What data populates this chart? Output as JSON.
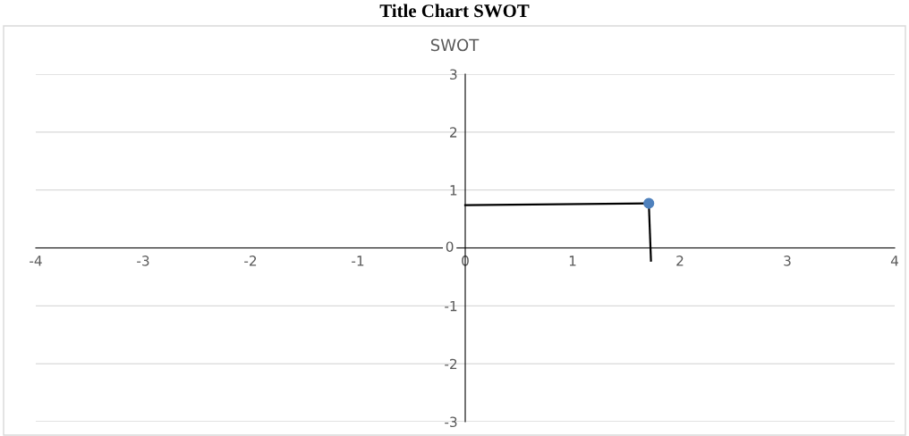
{
  "chart_data": {
    "type": "scatter",
    "title": "Title Chart SWOT",
    "subtitle": "SWOT",
    "series": [
      {
        "color": "#4f81bd",
        "x": [
          1.71
        ],
        "values": [
          0.77
        ],
        "marker": "circle"
      },
      {
        "type": "line",
        "color": "#000000",
        "x": [
          0,
          1.71
        ],
        "values": [
          0.74,
          0.77
        ],
        "marker": "none"
      },
      {
        "type": "line",
        "color": "#000000",
        "x": [
          1.71,
          1.73
        ],
        "values": [
          0.77,
          -0.22
        ],
        "marker": "none"
      }
    ],
    "xlim": [
      -4,
      4
    ],
    "ylim": [
      -3,
      3
    ],
    "xticks": [
      -4,
      -3,
      -2,
      -1,
      0,
      1,
      2,
      3,
      4
    ],
    "yticks": [
      -3,
      -2,
      -1,
      0,
      1,
      2,
      3
    ],
    "grid": "y",
    "legend": false
  }
}
